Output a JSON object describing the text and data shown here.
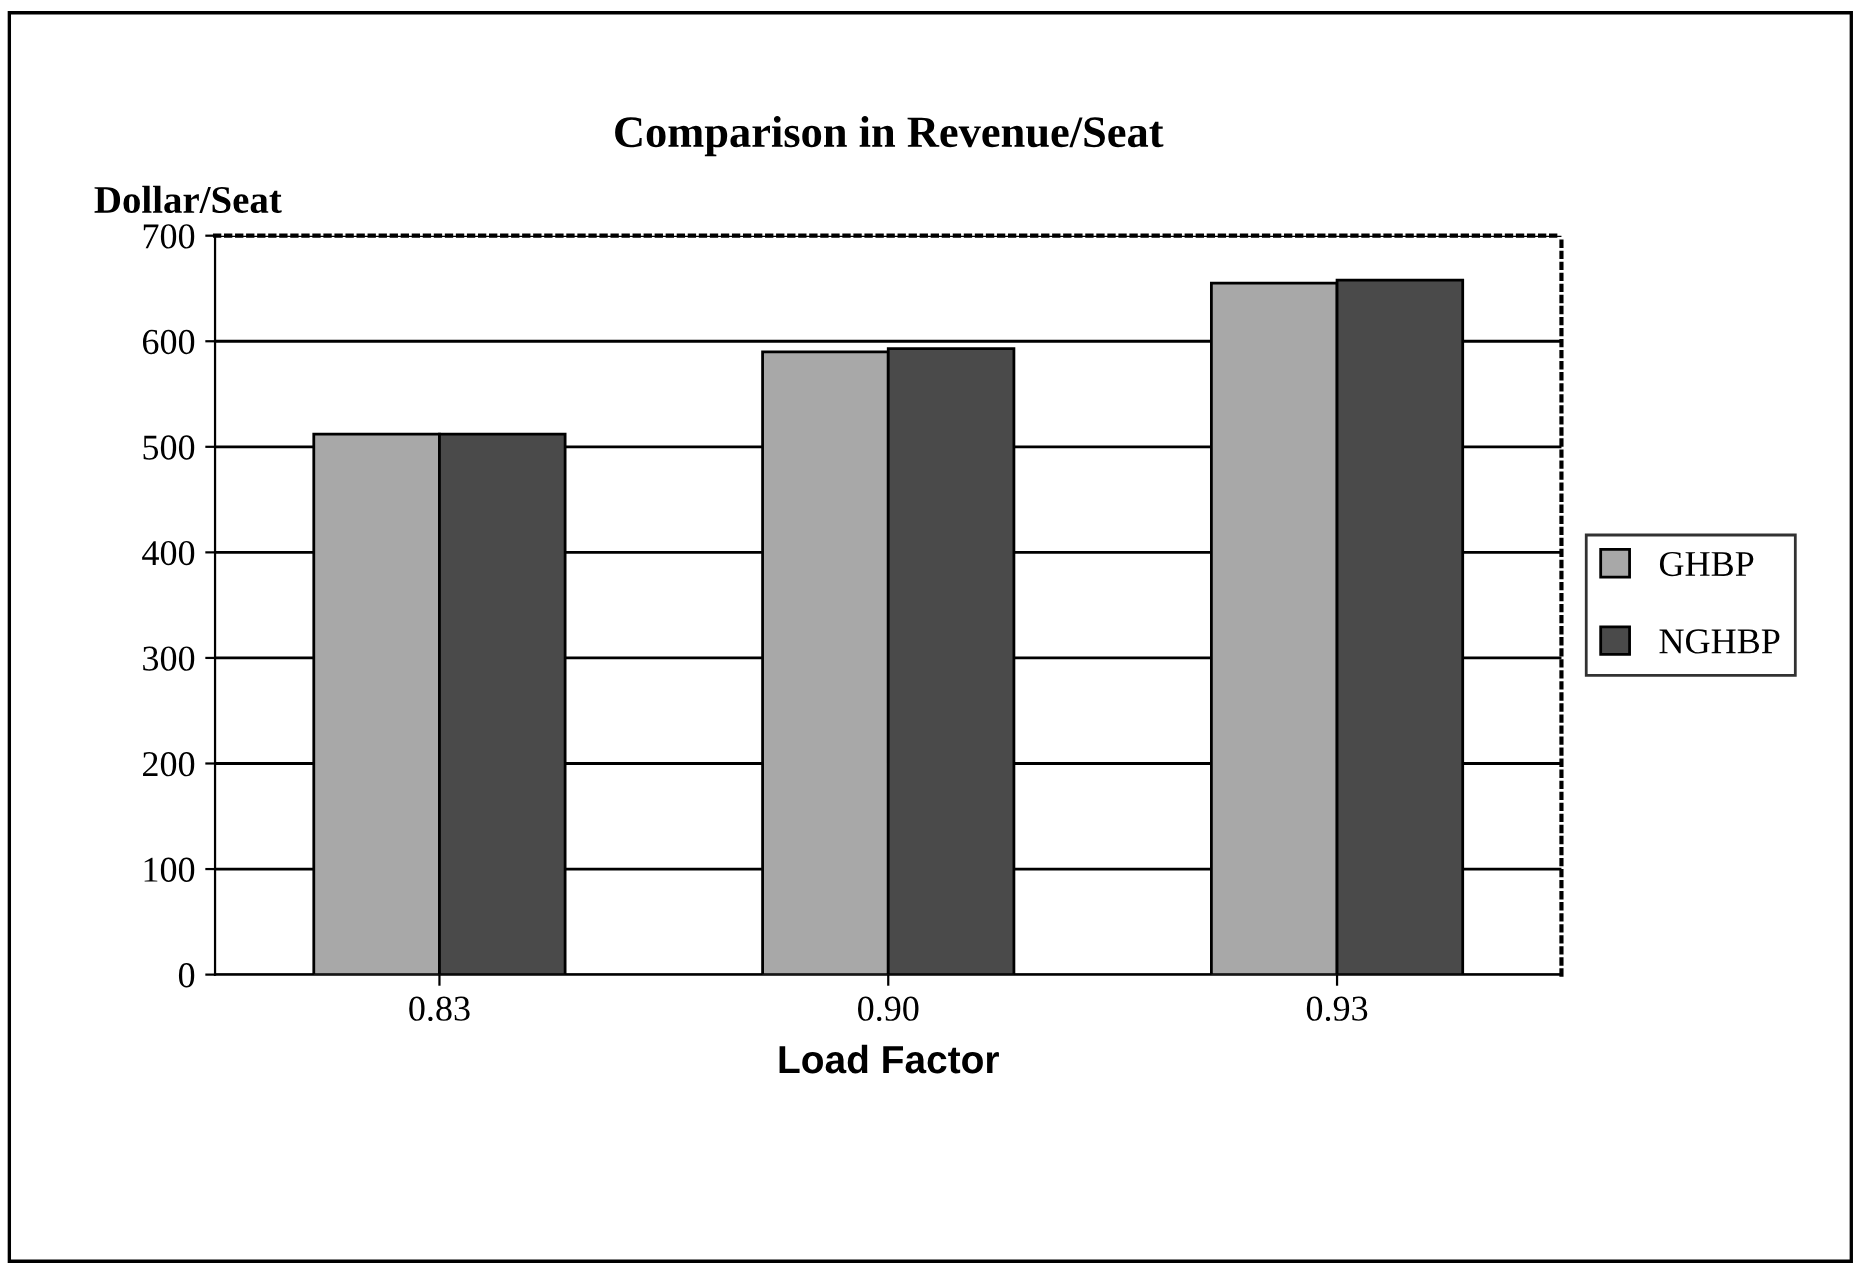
{
  "chart_data": {
    "type": "bar",
    "title": "Comparison in Revenue/Seat",
    "ylabel": "Dollar/Seat",
    "xlabel": "Load Factor",
    "categories": [
      "0.83",
      "0.90",
      "0.93"
    ],
    "series": [
      {
        "name": "GHBP",
        "color": "#a8a8a8",
        "values": [
          512,
          590,
          655
        ]
      },
      {
        "name": "NGHBP",
        "color": "#4a4a4a",
        "values": [
          512,
          593,
          658
        ]
      }
    ],
    "ylim": [
      0,
      700
    ],
    "yticks": [
      0,
      100,
      200,
      300,
      400,
      500,
      600,
      700
    ],
    "grid": "y",
    "legend": "right"
  }
}
